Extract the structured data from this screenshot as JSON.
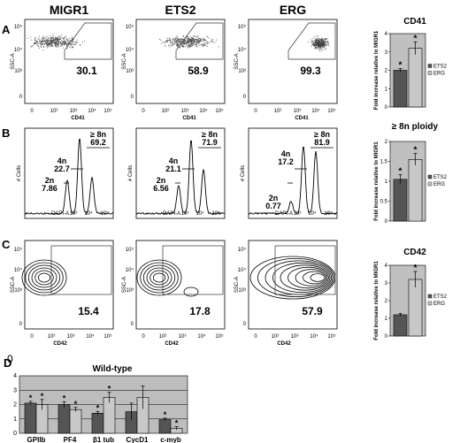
{
  "columns": [
    "MIGR1",
    "ETS2",
    "ERG"
  ],
  "panel_letters": [
    "A",
    "B",
    "C",
    "D"
  ],
  "panel_a": {
    "y_label": "SSC-A",
    "x_label": "CD41",
    "y_ticks": [
      "0",
      "10³",
      "10⁴",
      "10⁵"
    ],
    "x_ticks": [
      "0",
      "10²",
      "10³",
      "10⁴",
      "10⁵"
    ],
    "gate_values": [
      "30.1",
      "58.9",
      "99.3"
    ]
  },
  "panel_b": {
    "y_label": "# Cells",
    "x_label": "DAPI-A",
    "x_ticks": [
      "10³",
      "10⁴",
      "10⁵"
    ],
    "gate_names": [
      "2n",
      "4n",
      "≥ 8n"
    ],
    "gate_values": [
      {
        "n2": "7.86",
        "n4": "22.7",
        "n8": "69.2"
      },
      {
        "n2": "6.56",
        "n4": "21.1",
        "n8": "71.9"
      },
      {
        "n2": "0.77",
        "n4": "17.2",
        "n8": "81.9"
      }
    ]
  },
  "panel_c": {
    "y_label": "SSC-A",
    "x_label": "CD42",
    "y_ticks": [
      "0",
      "10³",
      "10⁴",
      "10⁵"
    ],
    "x_ticks": [
      "0",
      "10²",
      "10³",
      "10⁴",
      "10⁵"
    ],
    "gate_values": [
      "15.4",
      "17.8",
      "57.9"
    ]
  },
  "stray_zero": "0",
  "chart_data": [
    {
      "type": "bar",
      "title": "CD41",
      "categories": [
        "ETS2",
        "ERG"
      ],
      "values": [
        2.0,
        3.2
      ],
      "errors": [
        0.1,
        0.35
      ],
      "significant": [
        true,
        true
      ],
      "ylabel": "Fold increase relative to MIGR1",
      "ylim": [
        0,
        4
      ],
      "yticks": [
        "0",
        "1",
        "2",
        "3",
        "4"
      ],
      "legend": [
        "ETS2",
        "ERG"
      ],
      "legend_position": "right",
      "colors": {
        "ETS2": "#555555",
        "ERG": "#c8c8c8"
      }
    },
    {
      "type": "bar",
      "title": "≥ 8n ploidy",
      "categories": [
        "ETS2",
        "ERG"
      ],
      "values": [
        1.05,
        1.55
      ],
      "errors": [
        0.12,
        0.15
      ],
      "significant": [
        true,
        true
      ],
      "ylabel": "Fold increase relative to MIGR1",
      "ylim": [
        0,
        2
      ],
      "yticks": [
        "0",
        "0.5",
        "1",
        "1.5",
        "2"
      ],
      "legend": [
        "ETS2",
        "ERG"
      ],
      "legend_position": "right",
      "colors": {
        "ETS2": "#555555",
        "ERG": "#c8c8c8"
      }
    },
    {
      "type": "bar",
      "title": "CD42",
      "categories": [
        "ETS2",
        "ERG"
      ],
      "values": [
        1.2,
        3.2
      ],
      "errors": [
        0.08,
        0.45
      ],
      "significant": [
        false,
        true
      ],
      "ylabel": "Fold increase relative to MIGR1",
      "ylim": [
        0,
        4
      ],
      "yticks": [
        "0",
        "1",
        "2",
        "3",
        "4"
      ],
      "legend": [
        "ETS2",
        "ERG"
      ],
      "legend_position": "right",
      "colors": {
        "ETS2": "#555555",
        "ERG": "#c8c8c8"
      }
    },
    {
      "type": "bar",
      "title": "Wild-type",
      "categories": [
        "GPIIb",
        "PF4",
        "β1 tub",
        "CycD1",
        "c-myb"
      ],
      "series": [
        {
          "values": [
            2.1,
            2.0,
            1.4,
            1.5,
            0.95
          ],
          "errors": [
            0.12,
            0.2,
            0.12,
            0.6,
            0.1
          ]
        },
        {
          "values": [
            2.0,
            1.65,
            2.5,
            2.5,
            0.35
          ],
          "errors": [
            0.35,
            0.15,
            0.35,
            0.8,
            0.12
          ]
        }
      ],
      "significant": [
        [
          true,
          true
        ],
        [
          true,
          true
        ],
        [
          true,
          true
        ],
        [
          false,
          false
        ],
        [
          true,
          true
        ]
      ],
      "ylim": [
        0,
        4
      ],
      "yticks": [
        "0",
        "1",
        "2",
        "3",
        "4"
      ],
      "grid": true,
      "colors": [
        "#555555",
        "#c8c8c8"
      ],
      "background": "#bdbdbd"
    }
  ]
}
